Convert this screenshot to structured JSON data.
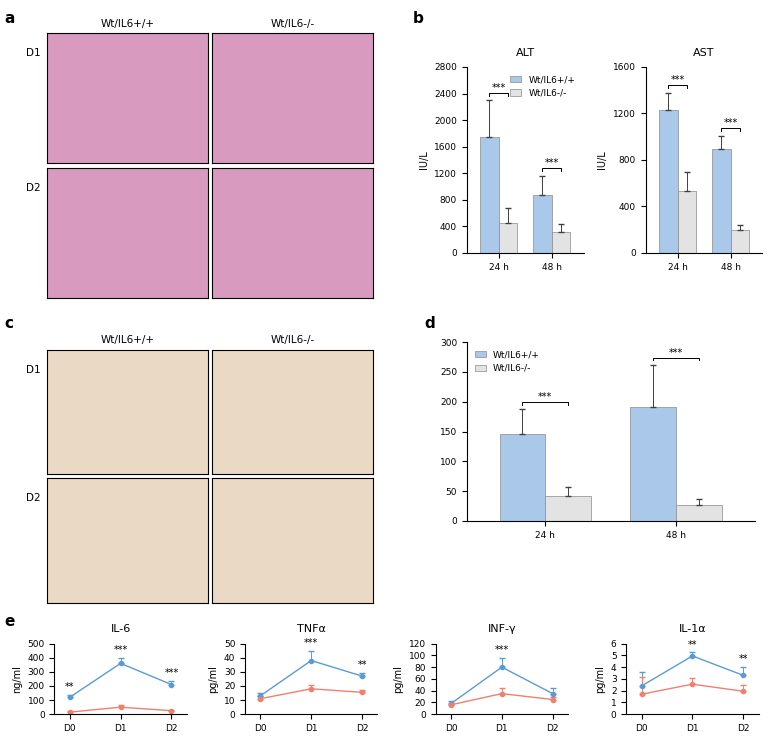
{
  "chart_data": [
    {
      "panel_label": "a",
      "type": "image_grid",
      "column_labels": [
        "Wt/IL6+/+",
        "Wt/IL6-/-"
      ],
      "row_labels": [
        "D1",
        "D2"
      ],
      "color": "#d99ac0"
    },
    {
      "panel_label": "b",
      "type": "bar",
      "title": "ALT",
      "y_label": "IU/L",
      "categories": [
        "24 h",
        "48 h"
      ],
      "series": [
        {
          "name": "Wt/IL6+/+",
          "color": "#a9c8ea",
          "values": [
            1750,
            880
          ],
          "errors": [
            550,
            280
          ]
        },
        {
          "name": "Wt/IL6-/-",
          "color": "#e3e3e3",
          "values": [
            450,
            310
          ],
          "errors": [
            230,
            130
          ]
        }
      ],
      "ylim": [
        0,
        2800
      ],
      "yticks": [
        0,
        400,
        800,
        1200,
        1600,
        2000,
        2400,
        2800
      ],
      "significance": [
        "***",
        "***"
      ],
      "legend": "upper right"
    },
    {
      "type": "bar",
      "title": "AST",
      "y_label": "IU/L",
      "categories": [
        "24 h",
        "48 h"
      ],
      "series": [
        {
          "name": "Wt/IL6+/+",
          "color": "#a9c8ea",
          "values": [
            1230,
            890
          ],
          "errors": [
            150,
            120
          ]
        },
        {
          "name": "Wt/IL6-/-",
          "color": "#e3e3e3",
          "values": [
            530,
            200
          ],
          "errors": [
            170,
            40
          ]
        }
      ],
      "ylim": [
        0,
        1600
      ],
      "yticks": [
        0,
        400,
        800,
        1200,
        1600
      ],
      "significance": [
        "***",
        "***"
      ]
    },
    {
      "panel_label": "c",
      "type": "image_grid",
      "column_labels": [
        "Wt/IL6+/+",
        "Wt/IL6-/-"
      ],
      "row_labels": [
        "D1",
        "D2"
      ],
      "color": "#ead9c4"
    },
    {
      "panel_label": "d",
      "type": "bar",
      "categories": [
        "24 h",
        "48 h"
      ],
      "series": [
        {
          "name": "Wt/IL6+/+",
          "color": "#a9c8ea",
          "values": [
            145,
            192
          ],
          "errors": [
            42,
            70
          ]
        },
        {
          "name": "Wt/IL6-/-",
          "color": "#e3e3e3",
          "values": [
            42,
            27
          ],
          "errors": [
            15,
            10
          ]
        }
      ],
      "ylim": [
        0,
        300
      ],
      "yticks": [
        0,
        50,
        100,
        150,
        200,
        250,
        300
      ],
      "significance": [
        "***",
        "***"
      ],
      "legend": "upper left"
    },
    {
      "panel_label": "e",
      "type": "line",
      "title": "IL-6",
      "y_label": "ng/ml",
      "categories": [
        "D0",
        "D1",
        "D2"
      ],
      "series": [
        {
          "name": "Wt/IL6+/+",
          "color": "#5b9bd5",
          "values": [
            120,
            360,
            210
          ],
          "errors": [
            15,
            40,
            25
          ]
        },
        {
          "name": "Wt/IL6-/-",
          "color": "#f0806e",
          "values": [
            15,
            50,
            25
          ],
          "errors": [
            10,
            15,
            5
          ]
        }
      ],
      "ylim": [
        0,
        500
      ],
      "yticks": [
        0,
        100,
        200,
        300,
        400,
        500
      ],
      "significance": [
        "**",
        "***",
        "***"
      ]
    },
    {
      "type": "line",
      "title": "TNFα",
      "y_label": "pg/ml",
      "categories": [
        "D0",
        "D1",
        "D2"
      ],
      "series": [
        {
          "name": "Wt/IL6+/+",
          "color": "#5b9bd5",
          "values": [
            13,
            38,
            27
          ],
          "errors": [
            2,
            7,
            2
          ]
        },
        {
          "name": "Wt/IL6-/-",
          "color": "#f0806e",
          "values": [
            11,
            18,
            15.5
          ],
          "errors": [
            2,
            3,
            1.5
          ]
        }
      ],
      "ylim": [
        0,
        50
      ],
      "yticks": [
        0,
        10,
        20,
        30,
        40,
        50
      ],
      "significance": [
        null,
        "***",
        "**"
      ]
    },
    {
      "type": "line",
      "title": "INF-γ",
      "y_label": "pg/ml",
      "categories": [
        "D0",
        "D1",
        "D2"
      ],
      "series": [
        {
          "name": "Wt/IL6+/+",
          "color": "#5b9bd5",
          "values": [
            18,
            80,
            35
          ],
          "errors": [
            5,
            15,
            10
          ]
        },
        {
          "name": "Wt/IL6-/-",
          "color": "#f0806e",
          "values": [
            16,
            35,
            25
          ],
          "errors": [
            3,
            10,
            5
          ]
        }
      ],
      "ylim": [
        0,
        120
      ],
      "yticks": [
        0,
        20,
        40,
        60,
        80,
        100,
        120
      ],
      "significance": [
        null,
        "***",
        null
      ]
    },
    {
      "type": "line",
      "title": "IL-1α",
      "y_label": "pg/ml",
      "categories": [
        "D0",
        "D1",
        "D2"
      ],
      "series": [
        {
          "name": "Wt/IL6+/+",
          "color": "#5b9bd5",
          "values": [
            2.4,
            4.95,
            3.3
          ],
          "errors": [
            1.2,
            0.3,
            0.7
          ]
        },
        {
          "name": "Wt/IL6-/-",
          "color": "#f0806e",
          "values": [
            1.7,
            2.55,
            1.95
          ],
          "errors": [
            1.5,
            0.5,
            0.5
          ]
        }
      ],
      "ylim": [
        0,
        6
      ],
      "yticks": [
        0,
        1,
        2,
        3,
        4,
        5,
        6
      ],
      "significance": [
        null,
        "**",
        "**"
      ]
    }
  ]
}
